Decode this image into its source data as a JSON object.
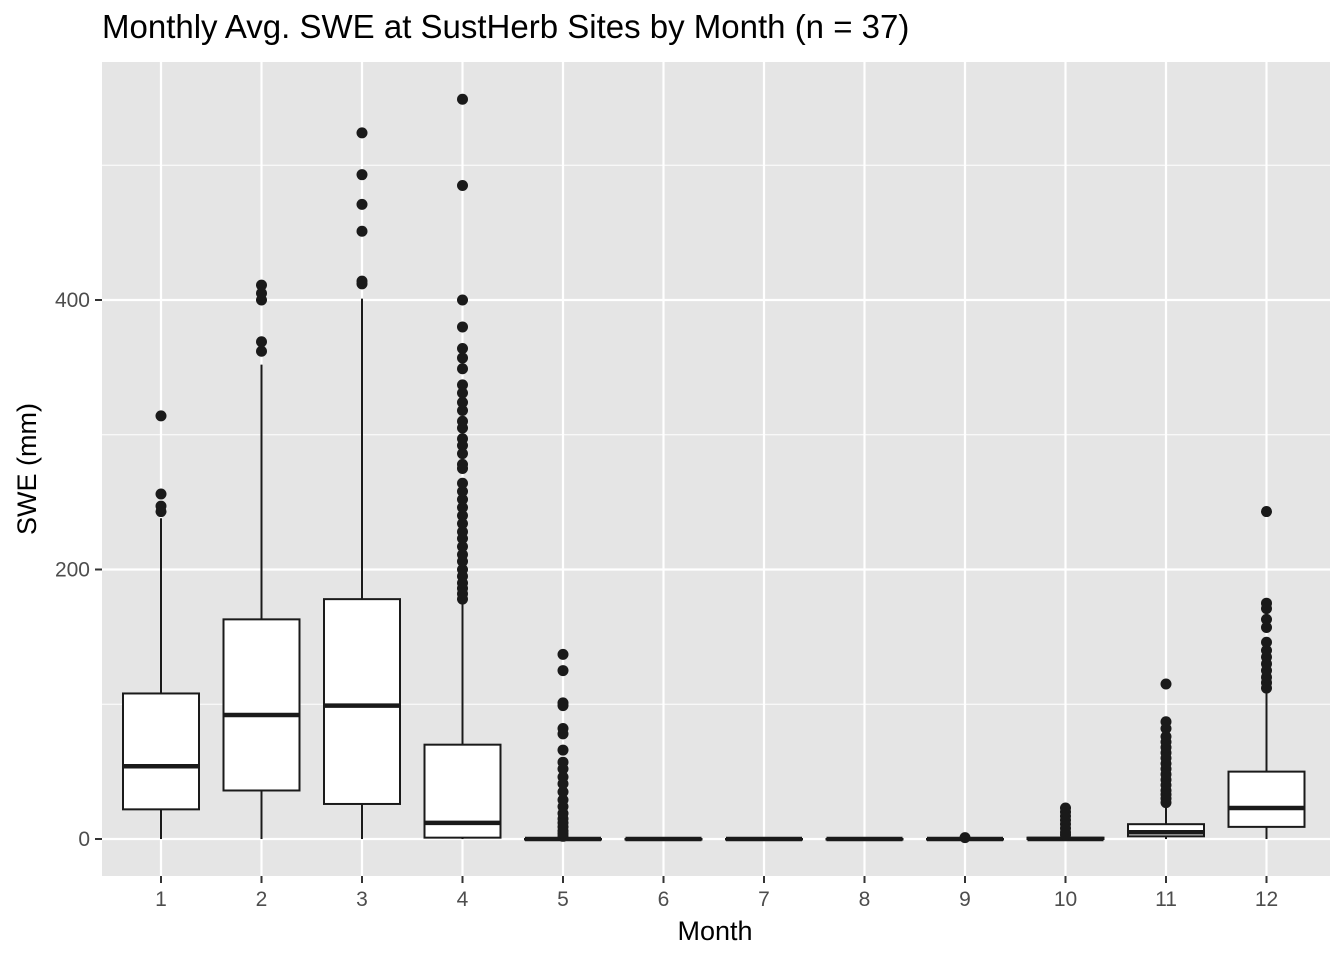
{
  "chart_data": {
    "type": "box",
    "title": "Monthly Avg. SWE at SustHerb Sites by Month (n = 37)",
    "xlabel": "Month",
    "ylabel": "SWE (mm)",
    "categories": [
      "1",
      "2",
      "3",
      "4",
      "5",
      "6",
      "7",
      "8",
      "9",
      "10",
      "11",
      "12"
    ],
    "ylim": [
      -28,
      575
    ],
    "yticks": [
      0,
      200,
      400
    ],
    "grid": true,
    "boxes": [
      {
        "category": "1",
        "min": 0,
        "q1": 22,
        "median": 54,
        "q3": 108,
        "max": 238,
        "outliers": [
          243,
          247,
          256,
          314
        ]
      },
      {
        "category": "2",
        "min": 0,
        "q1": 36,
        "median": 92,
        "q3": 163,
        "max": 352,
        "outliers": [
          362,
          369,
          400,
          405,
          411
        ]
      },
      {
        "category": "3",
        "min": 0,
        "q1": 26,
        "median": 99,
        "q3": 178,
        "max": 401,
        "outliers": [
          412,
          414,
          451,
          471,
          493,
          524
        ]
      },
      {
        "category": "4",
        "min": 0,
        "q1": 1,
        "median": 12,
        "q3": 70,
        "max": 175,
        "outliers": [
          178,
          182,
          186,
          190,
          195,
          200,
          206,
          211,
          217,
          223,
          228,
          234,
          240,
          246,
          252,
          258,
          264,
          275,
          278,
          286,
          292,
          297,
          305,
          310,
          318,
          324,
          331,
          337,
          349,
          357,
          364,
          380,
          400,
          485,
          549
        ]
      },
      {
        "category": "5",
        "min": 0,
        "q1": 0,
        "median": 0,
        "q3": 0,
        "max": 0,
        "outliers": [
          2,
          4,
          6,
          9,
          12,
          15,
          19,
          24,
          29,
          35,
          41,
          46,
          52,
          57,
          66,
          78,
          82,
          99,
          101,
          125,
          137
        ]
      },
      {
        "category": "6",
        "min": 0,
        "q1": 0,
        "median": 0,
        "q3": 0,
        "max": 0,
        "outliers": []
      },
      {
        "category": "7",
        "min": 0,
        "q1": 0,
        "median": 0,
        "q3": 0,
        "max": 0,
        "outliers": []
      },
      {
        "category": "8",
        "min": 0,
        "q1": 0,
        "median": 0,
        "q3": 0,
        "max": 0,
        "outliers": []
      },
      {
        "category": "9",
        "min": 0,
        "q1": 0,
        "median": 0,
        "q3": 0,
        "max": 0,
        "outliers": [
          1
        ]
      },
      {
        "category": "10",
        "min": 0,
        "q1": 0,
        "median": 0,
        "q3": 1,
        "max": 1,
        "outliers": [
          3,
          5,
          8,
          11,
          14,
          17,
          20,
          23
        ]
      },
      {
        "category": "11",
        "min": 0,
        "q1": 2,
        "median": 5,
        "q3": 11,
        "max": 25,
        "outliers": [
          27,
          30,
          33,
          36,
          40,
          44,
          48,
          52,
          56,
          60,
          64,
          68,
          72,
          76,
          82,
          87,
          115
        ]
      },
      {
        "category": "12",
        "min": 0,
        "q1": 9,
        "median": 23,
        "q3": 50,
        "max": 108,
        "outliers": [
          112,
          116,
          120,
          125,
          130,
          135,
          140,
          146,
          157,
          163,
          171,
          175,
          243
        ]
      }
    ]
  },
  "colors": {
    "panel_background": "#e5e5e5",
    "grid_major": "#ffffff",
    "box_fill": "#ffffff",
    "box_stroke": "#1a1a1a",
    "outlier_fill": "#1a1a1a"
  }
}
